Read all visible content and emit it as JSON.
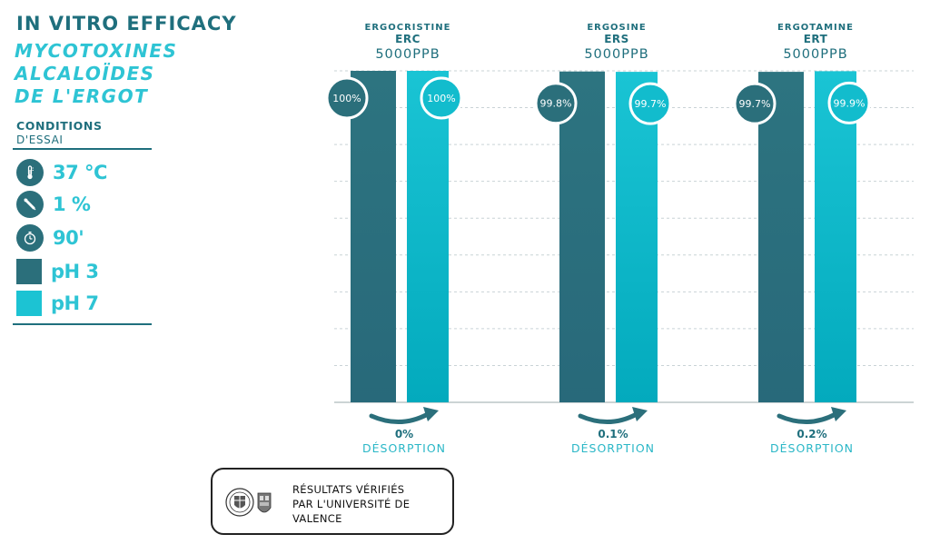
{
  "title": "IN VITRO EFFICACY",
  "subtitle_lines": [
    "MYCOTOXINES",
    "ALCALOÏDES",
    "DE L'ERGOT"
  ],
  "conditions": {
    "heading": "CONDITIONS",
    "subheading": "D'ESSAI",
    "items": [
      {
        "icon": "thermometer-icon",
        "text": "37 °C"
      },
      {
        "icon": "dropper-icon",
        "text": "1 %"
      },
      {
        "icon": "stopwatch-icon",
        "text": "90'"
      },
      {
        "icon": "swatch-dark",
        "text": "pH 3",
        "color": "#2b6f7b"
      },
      {
        "icon": "swatch-light",
        "text": "pH 7",
        "color": "#1cc3d3"
      }
    ]
  },
  "colors": {
    "ph3": "#2b6f7b",
    "ph7": "#16bfd0",
    "ph7_bottom": "#05adc0",
    "dark_text": "#1f6f7d",
    "accent": "#2ec4d4"
  },
  "chart_data": {
    "type": "bar",
    "ylim": [
      0,
      100
    ],
    "grid": true,
    "series": [
      {
        "name": "pH 3",
        "values": [
          100,
          99.8,
          99.7
        ],
        "labels": [
          "100%",
          "99.8%",
          "99.7%"
        ]
      },
      {
        "name": "pH 7",
        "values": [
          100,
          99.7,
          99.9
        ],
        "labels": [
          "100%",
          "99.7%",
          "99.9%"
        ]
      }
    ],
    "groups": [
      {
        "name": "ERGOCRISTINE",
        "code": "ERC",
        "concentration": "5000PPB",
        "desorption": "0%"
      },
      {
        "name": "ERGOSINE",
        "code": "ERS",
        "concentration": "5000PPB",
        "desorption": "0.1%"
      },
      {
        "name": "ERGOTAMINE",
        "code": "ERT",
        "concentration": "5000PPB",
        "desorption": "0.2%"
      }
    ],
    "desorption_label": "DÉSORPTION"
  },
  "badge": {
    "lines": [
      "RÉSULTATS VÉRIFIÉS",
      "PAR L'UNIVERSITÉ DE",
      "VALENCE"
    ]
  }
}
